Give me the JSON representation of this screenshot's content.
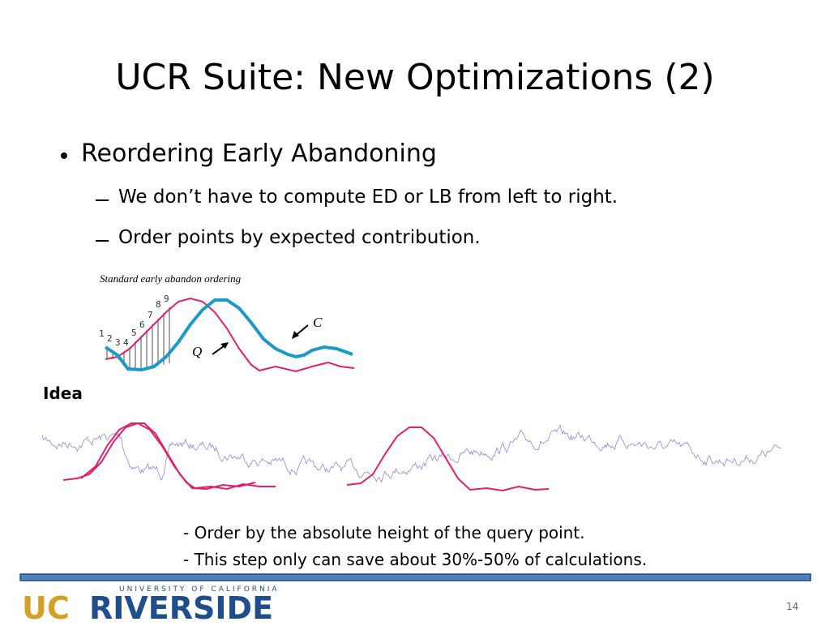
{
  "title": "UCR Suite: New Optimizations (2)",
  "bullets": [
    {
      "text": "Reordering Early Abandoning",
      "subs": [
        "We don’t have to compute ED or LB from left to right.",
        "Order points by expected contribution."
      ]
    }
  ],
  "figure": {
    "caption": "Standard early abandon ordering",
    "order_labels": [
      "1",
      "2",
      "3",
      "4",
      "5",
      "6",
      "7",
      "8",
      "9"
    ],
    "q_label": "Q",
    "c_label": "C"
  },
  "idea_label": "Idea",
  "notes": [
    "- Order by the absolute height of the query point.",
    "- This step only can save about 30%-50% of calculations."
  ],
  "footer": {
    "logo_top": "UNIVERSITY OF CALIFORNIA",
    "logo_uc": "UC",
    "logo_riverside": "RIVERSIDE",
    "page_number": "14"
  }
}
